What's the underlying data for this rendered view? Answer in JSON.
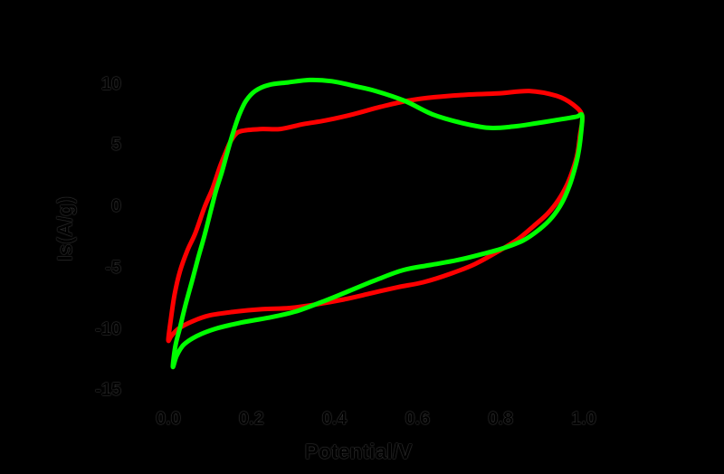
{
  "figure": {
    "background": "#000000",
    "text_color": "#000000"
  },
  "chart_data": {
    "type": "line",
    "subtype": "cyclic-voltammogram",
    "title": "",
    "xlabel": "Potential/V",
    "ylabel": "Is(A/g)",
    "grid": false,
    "legend": null,
    "x_ticks": [
      0.0,
      0.2,
      0.4,
      0.6,
      0.8,
      1.0
    ],
    "x_tick_labels": [
      "0.0",
      "0.2",
      "0.4",
      "0.6",
      "0.8",
      "1.0"
    ],
    "y_ticks": [
      10,
      5,
      0,
      -5,
      -10,
      -15
    ],
    "y_tick_labels": [
      "10",
      "5",
      "0",
      "-5",
      "-10",
      "-15"
    ],
    "xlim": [
      -0.06,
      1.12
    ],
    "ylim": [
      -16.1,
      12.8
    ],
    "axis_color": "#000000",
    "series": [
      {
        "name": "red-scan",
        "color": "#ff0000",
        "line_width": 5,
        "closed": true,
        "points": [
          [
            0.0,
            -10.9
          ],
          [
            0.007,
            -9.0
          ],
          [
            0.015,
            -7.2
          ],
          [
            0.028,
            -5.3
          ],
          [
            0.046,
            -3.6
          ],
          [
            0.065,
            -2.2
          ],
          [
            0.087,
            -0.1
          ],
          [
            0.107,
            1.5
          ],
          [
            0.124,
            3.2
          ],
          [
            0.137,
            4.3
          ],
          [
            0.15,
            5.3
          ],
          [
            0.166,
            6.0
          ],
          [
            0.187,
            6.2
          ],
          [
            0.227,
            6.3
          ],
          [
            0.27,
            6.3
          ],
          [
            0.325,
            6.7
          ],
          [
            0.379,
            7.0
          ],
          [
            0.444,
            7.5
          ],
          [
            0.51,
            8.1
          ],
          [
            0.575,
            8.6
          ],
          [
            0.641,
            8.9
          ],
          [
            0.717,
            9.1
          ],
          [
            0.793,
            9.2
          ],
          [
            0.869,
            9.4
          ],
          [
            0.935,
            9.0
          ],
          [
            0.974,
            8.3
          ],
          [
            0.996,
            7.4
          ],
          [
            0.991,
            5.8
          ],
          [
            0.985,
            4.3
          ],
          [
            0.974,
            3.0
          ],
          [
            0.959,
            1.7
          ],
          [
            0.939,
            0.5
          ],
          [
            0.913,
            -0.6
          ],
          [
            0.88,
            -1.6
          ],
          [
            0.841,
            -2.7
          ],
          [
            0.793,
            -3.7
          ],
          [
            0.739,
            -4.7
          ],
          [
            0.68,
            -5.5
          ],
          [
            0.614,
            -6.2
          ],
          [
            0.553,
            -6.6
          ],
          [
            0.488,
            -7.1
          ],
          [
            0.423,
            -7.6
          ],
          [
            0.357,
            -8.0
          ],
          [
            0.292,
            -8.3
          ],
          [
            0.227,
            -8.4
          ],
          [
            0.161,
            -8.6
          ],
          [
            0.1,
            -8.9
          ],
          [
            0.057,
            -9.4
          ],
          [
            0.024,
            -10.0
          ],
          [
            0.007,
            -10.6
          ]
        ]
      },
      {
        "name": "green-scan",
        "color": "#00ff00",
        "line_width": 5,
        "closed": true,
        "points": [
          [
            0.011,
            -13.1
          ],
          [
            0.017,
            -11.4
          ],
          [
            0.028,
            -9.9
          ],
          [
            0.041,
            -8.1
          ],
          [
            0.057,
            -6.1
          ],
          [
            0.072,
            -4.2
          ],
          [
            0.087,
            -2.4
          ],
          [
            0.102,
            -0.4
          ],
          [
            0.115,
            1.3
          ],
          [
            0.129,
            2.8
          ],
          [
            0.142,
            4.4
          ],
          [
            0.155,
            5.9
          ],
          [
            0.17,
            7.4
          ],
          [
            0.187,
            8.6
          ],
          [
            0.209,
            9.4
          ],
          [
            0.242,
            9.9
          ],
          [
            0.288,
            10.1
          ],
          [
            0.34,
            10.3
          ],
          [
            0.394,
            10.2
          ],
          [
            0.449,
            9.8
          ],
          [
            0.499,
            9.4
          ],
          [
            0.569,
            8.6
          ],
          [
            0.636,
            7.5
          ],
          [
            0.706,
            6.8
          ],
          [
            0.771,
            6.4
          ],
          [
            0.83,
            6.5
          ],
          [
            0.891,
            6.8
          ],
          [
            0.946,
            7.1
          ],
          [
            0.982,
            7.3
          ],
          [
            0.996,
            7.4
          ],
          [
            0.993,
            5.8
          ],
          [
            0.987,
            4.3
          ],
          [
            0.978,
            3.0
          ],
          [
            0.965,
            1.6
          ],
          [
            0.948,
            0.3
          ],
          [
            0.924,
            -0.9
          ],
          [
            0.893,
            -1.9
          ],
          [
            0.854,
            -2.8
          ],
          [
            0.808,
            -3.4
          ],
          [
            0.756,
            -3.9
          ],
          [
            0.695,
            -4.4
          ],
          [
            0.63,
            -4.8
          ],
          [
            0.566,
            -5.2
          ],
          [
            0.501,
            -6.0
          ],
          [
            0.436,
            -6.9
          ],
          [
            0.37,
            -7.8
          ],
          [
            0.305,
            -8.6
          ],
          [
            0.24,
            -9.1
          ],
          [
            0.174,
            -9.5
          ],
          [
            0.113,
            -10.0
          ],
          [
            0.068,
            -10.6
          ],
          [
            0.037,
            -11.3
          ],
          [
            0.02,
            -12.2
          ]
        ]
      }
    ]
  }
}
